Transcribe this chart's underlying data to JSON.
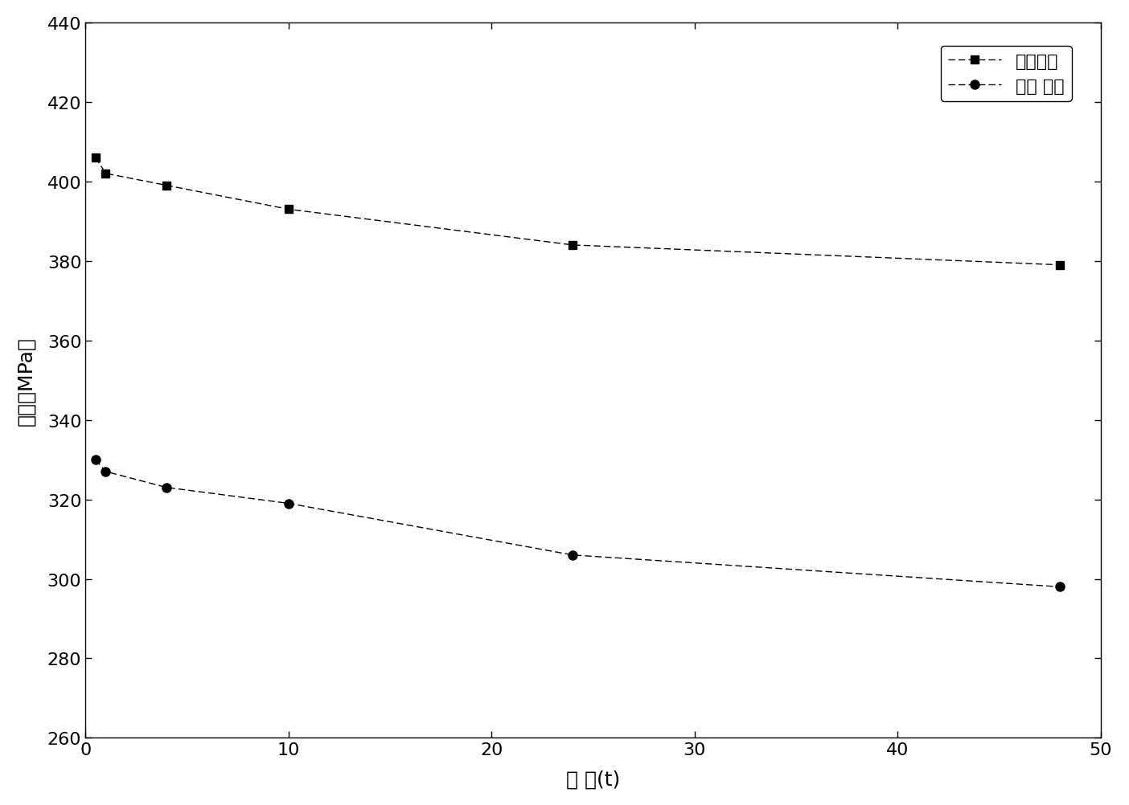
{
  "tensile_x": [
    0.5,
    1,
    4,
    10,
    24,
    48
  ],
  "tensile_y": [
    406,
    402,
    399,
    393,
    384,
    379
  ],
  "yield_x": [
    0.5,
    1,
    4,
    10,
    24,
    48
  ],
  "yield_y": [
    330,
    327,
    323,
    319,
    306,
    298
  ],
  "tensile_label": "抗拉强度",
  "yield_label": "屈服 强度",
  "xlabel": "时 间(t)",
  "ylabel": "强度（MPa）",
  "xlim": [
    0,
    50
  ],
  "ylim": [
    260,
    440
  ],
  "yticks": [
    260,
    280,
    300,
    320,
    340,
    360,
    380,
    400,
    420,
    440
  ],
  "xticks": [
    0,
    10,
    20,
    30,
    40,
    50
  ],
  "line_color": "#000000",
  "bg_color": "#ffffff",
  "tensile_linestyle": "--",
  "yield_linestyle": "--"
}
